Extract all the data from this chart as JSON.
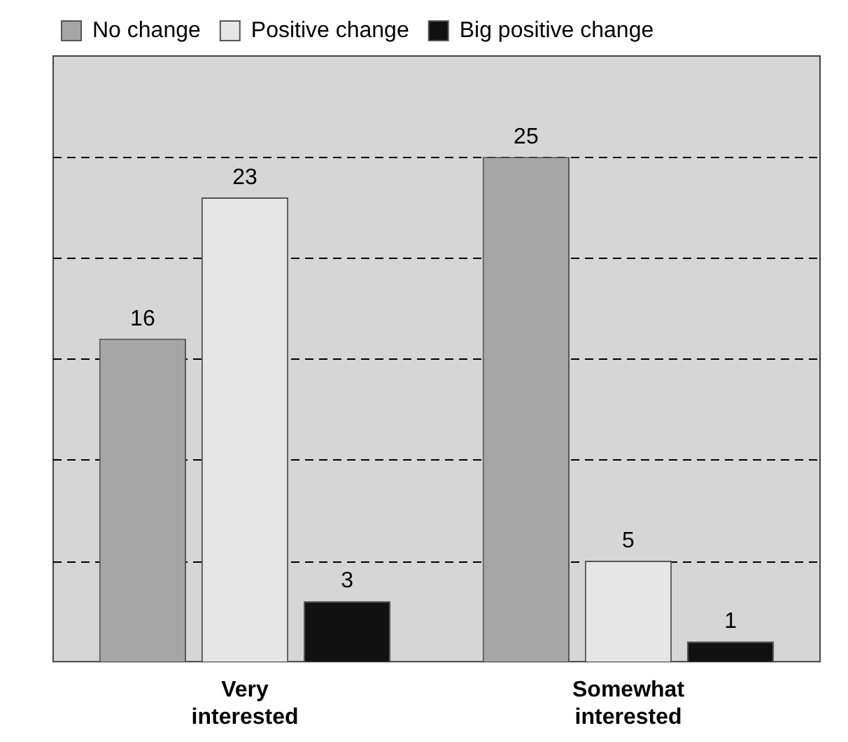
{
  "chart_data": {
    "type": "bar",
    "categories": [
      "Very interested",
      "Somewhat interested"
    ],
    "series": [
      {
        "name": "No change",
        "color": "#a6a6a6",
        "values": [
          16,
          25
        ]
      },
      {
        "name": "Positive change",
        "color": "#e6e6e6",
        "values": [
          23,
          5
        ]
      },
      {
        "name": "Big positive change",
        "color": "#111111",
        "values": [
          3,
          1
        ]
      }
    ],
    "ylim": [
      0,
      30
    ],
    "yticks": [
      {
        "value": 0,
        "label": null
      },
      {
        "value": 5,
        "label": null
      },
      {
        "value": 10,
        "label": null
      },
      {
        "value": 15,
        "label": null
      },
      {
        "value": 20,
        "label": null
      },
      {
        "value": 25,
        "label": null
      },
      {
        "value": 30,
        "label": null
      }
    ],
    "grid": "y",
    "line_style": "dashed",
    "legend": "top",
    "tick_labels": "x",
    "data_labels": true
  }
}
